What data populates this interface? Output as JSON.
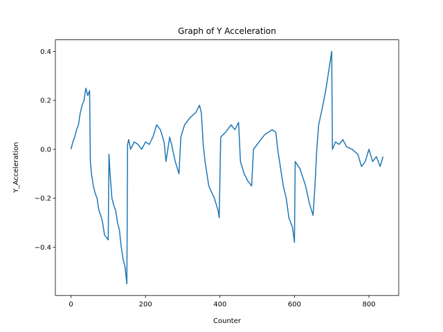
{
  "chart_data": {
    "type": "line",
    "title": "Graph of Y Acceleration",
    "x_label": "Counter",
    "y_label": "Y_Acceleration",
    "series": [
      {
        "color": "#1f77b4",
        "x": [
          0,
          5,
          10,
          15,
          20,
          25,
          30,
          35,
          40,
          45,
          50,
          52,
          55,
          60,
          65,
          70,
          75,
          80,
          85,
          90,
          95,
          100,
          102,
          105,
          110,
          115,
          120,
          125,
          130,
          135,
          140,
          145,
          150,
          152,
          155,
          160,
          170,
          180,
          190,
          200,
          210,
          220,
          230,
          240,
          250,
          255,
          260,
          265,
          270,
          280,
          290,
          295,
          305,
          320,
          335,
          345,
          350,
          355,
          360,
          370,
          385,
          395,
          398,
          402,
          415,
          430,
          440,
          450,
          455,
          465,
          475,
          485,
          490,
          505,
          520,
          540,
          550,
          555,
          560,
          570,
          578,
          585,
          595,
          600,
          602,
          615,
          630,
          640,
          650,
          655,
          660,
          665,
          675,
          685,
          690,
          695,
          700,
          702,
          710,
          720,
          730,
          740,
          755,
          770,
          780,
          790,
          800,
          810,
          820,
          830,
          838
        ],
        "values": [
          0.0,
          0.03,
          0.05,
          0.08,
          0.1,
          0.15,
          0.18,
          0.2,
          0.25,
          0.22,
          0.24,
          -0.05,
          -0.1,
          -0.15,
          -0.18,
          -0.2,
          -0.25,
          -0.27,
          -0.3,
          -0.35,
          -0.36,
          -0.37,
          -0.02,
          -0.1,
          -0.2,
          -0.23,
          -0.25,
          -0.3,
          -0.33,
          -0.4,
          -0.45,
          -0.48,
          -0.55,
          0.02,
          0.04,
          0.0,
          0.03,
          0.02,
          0.0,
          0.03,
          0.02,
          0.05,
          0.1,
          0.08,
          0.03,
          -0.05,
          0.0,
          0.05,
          0.02,
          -0.05,
          -0.1,
          0.05,
          0.1,
          0.13,
          0.15,
          0.18,
          0.15,
          0.02,
          -0.05,
          -0.15,
          -0.2,
          -0.25,
          -0.28,
          0.05,
          0.07,
          0.1,
          0.08,
          0.11,
          -0.05,
          -0.1,
          -0.13,
          -0.15,
          0.0,
          0.03,
          0.06,
          0.08,
          0.07,
          0.0,
          -0.05,
          -0.15,
          -0.2,
          -0.28,
          -0.32,
          -0.38,
          -0.05,
          -0.08,
          -0.15,
          -0.22,
          -0.27,
          -0.15,
          0.0,
          0.1,
          0.17,
          0.25,
          0.3,
          0.35,
          0.4,
          0.0,
          0.03,
          0.02,
          0.04,
          0.01,
          0.0,
          -0.02,
          -0.07,
          -0.05,
          0.0,
          -0.05,
          -0.03,
          -0.07,
          -0.03
        ]
      }
    ],
    "xlim": [
      -41.9,
      879.9
    ],
    "ylim": [
      -0.5975,
      0.4475
    ],
    "xticks": [
      0,
      200,
      400,
      600,
      800
    ],
    "yticks": [
      {
        "value": -0.4,
        "label": "−0.4"
      },
      {
        "value": -0.2,
        "label": "−0.2"
      },
      {
        "value": 0,
        "label": "0.0"
      },
      {
        "value": 0.2,
        "label": "0.2"
      },
      {
        "value": 0.4,
        "label": "0.4"
      }
    ]
  }
}
